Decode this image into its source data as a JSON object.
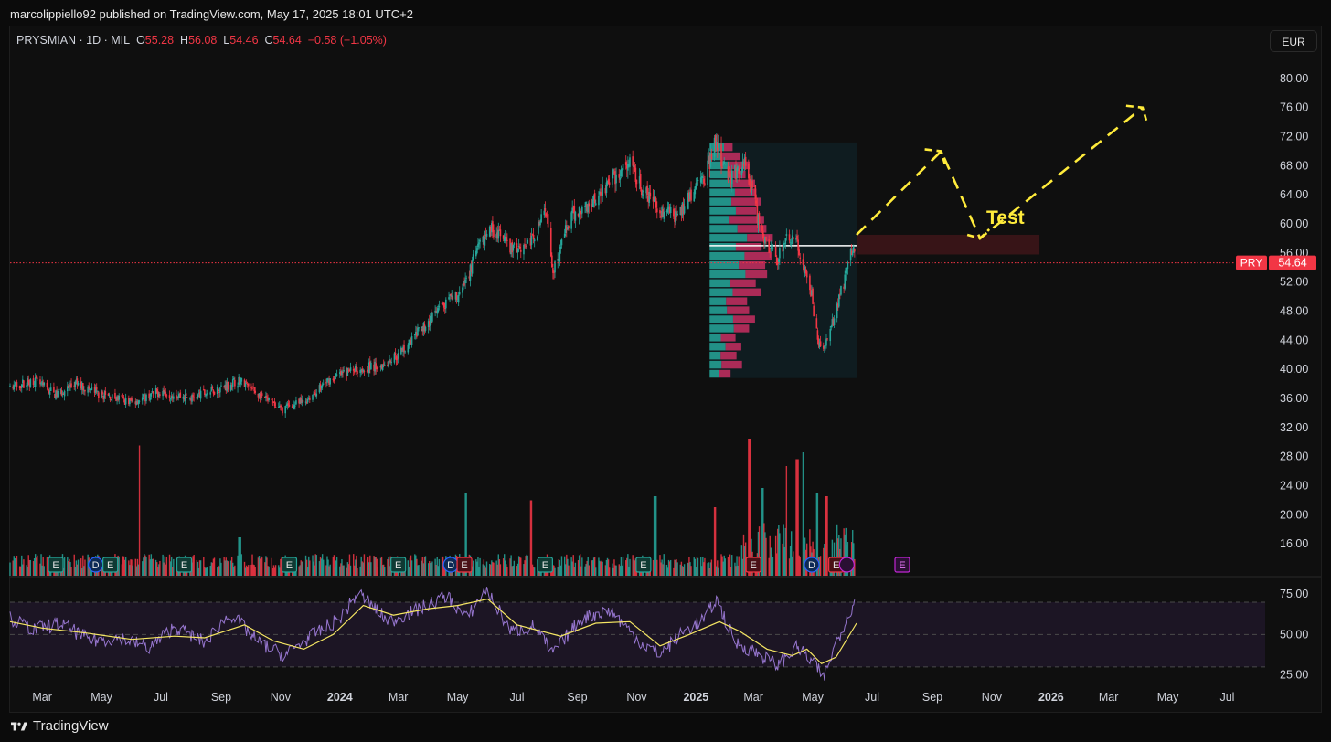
{
  "header": {
    "published_line": "marcolippiello92 published on TradingView.com, May 17, 2025 18:01 UTC+2"
  },
  "legend": {
    "symbol_line": "PRYSMIAN · 1D · MIL",
    "o_label": "O",
    "o_value": "55.28",
    "h_label": "H",
    "h_value": "56.08",
    "l_label": "L",
    "l_value": "54.46",
    "c_label": "C",
    "c_value": "54.64",
    "change": "−0.58 (−1.05%)"
  },
  "currency_button": "EUR",
  "branding": "TradingView",
  "colors": {
    "up": "#26a69a",
    "down": "#f23645",
    "rsi_line": "#9575cd",
    "rsi_ma": "#f5e663",
    "annotation": "#ffeb3b",
    "price_line": "#f23645"
  },
  "chart_data": [
    {
      "type": "candlestick",
      "symbol": "PRYSMIAN",
      "ticker": "PRY",
      "interval": "1D",
      "exchange": "MIL",
      "last_price": "54.64",
      "y_ticks": [
        "80.00",
        "76.00",
        "72.00",
        "68.00",
        "64.00",
        "60.00",
        "56.00",
        "52.00",
        "48.00",
        "44.00",
        "40.00",
        "36.00",
        "32.00",
        "28.00",
        "24.00",
        "20.00",
        "16.00"
      ],
      "ylim": [
        13.5,
        82
      ],
      "x_ticks": [
        "Mar",
        "May",
        "Jul",
        "Sep",
        "Nov",
        "2024",
        "Mar",
        "May",
        "Jul",
        "Sep",
        "Nov",
        "2025",
        "Mar",
        "May",
        "Jul",
        "Sep",
        "Nov",
        "2026",
        "Mar",
        "May",
        "Jul"
      ],
      "x_tick_dates": [
        "2023-03-01",
        "2023-05-01",
        "2023-07-01",
        "2023-09-01",
        "2023-11-01",
        "2024-01-01",
        "2024-03-01",
        "2024-05-01",
        "2024-07-01",
        "2024-09-01",
        "2024-11-01",
        "2025-01-01",
        "2025-03-01",
        "2025-05-01",
        "2025-07-01",
        "2025-09-01",
        "2025-11-01",
        "2026-01-01",
        "2026-03-01",
        "2026-05-01",
        "2026-07-01"
      ],
      "xlim": [
        "2023-01-27",
        "2026-08-09"
      ],
      "price_path": [
        [
          "2023-01-27",
          37.5
        ],
        [
          "2023-02-20",
          38.5
        ],
        [
          "2023-03-15",
          36.5
        ],
        [
          "2023-04-05",
          38.0
        ],
        [
          "2023-05-01",
          36.5
        ],
        [
          "2023-06-01",
          35.5
        ],
        [
          "2023-07-01",
          37.0
        ],
        [
          "2023-08-01",
          36.0
        ],
        [
          "2023-09-01",
          37.5
        ],
        [
          "2023-09-20",
          38.5
        ],
        [
          "2023-10-15",
          36.0
        ],
        [
          "2023-11-01",
          34.5
        ],
        [
          "2023-11-25",
          35.5
        ],
        [
          "2023-12-20",
          38.5
        ],
        [
          "2024-01-15",
          40.0
        ],
        [
          "2024-02-10",
          40.5
        ],
        [
          "2024-03-01",
          42.0
        ],
        [
          "2024-03-25",
          45.5
        ],
        [
          "2024-04-15",
          48.5
        ],
        [
          "2024-05-05",
          50.5
        ],
        [
          "2024-05-20",
          56.0
        ],
        [
          "2024-06-05",
          59.5
        ],
        [
          "2024-06-25",
          56.5
        ],
        [
          "2024-07-15",
          57.5
        ],
        [
          "2024-08-01",
          62.0
        ],
        [
          "2024-08-07",
          53.5
        ],
        [
          "2024-08-25",
          61.0
        ],
        [
          "2024-09-15",
          63.0
        ],
        [
          "2024-10-05",
          66.0
        ],
        [
          "2024-10-25",
          68.0
        ],
        [
          "2024-11-10",
          64.0
        ],
        [
          "2024-11-25",
          62.0
        ],
        [
          "2024-12-15",
          61.0
        ],
        [
          "2024-12-25",
          64.0
        ],
        [
          "2025-01-10",
          66.5
        ],
        [
          "2025-01-20",
          71.0
        ],
        [
          "2025-02-05",
          66.5
        ],
        [
          "2025-02-20",
          68.0
        ],
        [
          "2025-03-01",
          64.0
        ],
        [
          "2025-03-05",
          61.0
        ],
        [
          "2025-03-15",
          57.0
        ],
        [
          "2025-03-25",
          55.0
        ],
        [
          "2025-04-07",
          58.5
        ],
        [
          "2025-04-15",
          57.0
        ],
        [
          "2025-04-22",
          54.0
        ],
        [
          "2025-04-30",
          50.0
        ],
        [
          "2025-05-05",
          45.0
        ],
        [
          "2025-05-09",
          42.5
        ],
        [
          "2025-05-17",
          44.0
        ],
        [
          "2025-05-26",
          49.0
        ],
        [
          "2025-06-02",
          52.0
        ],
        [
          "2025-06-09",
          56.0
        ],
        [
          "2025-06-12",
          57.5
        ],
        [
          "2025-06-15",
          54.64
        ]
      ],
      "volume_ylim": [
        0,
        100
      ],
      "volume_note": "relative bar heights",
      "volume_spikes": [
        [
          "2023-06-10",
          95,
          "down"
        ],
        [
          "2023-09-20",
          28,
          "up"
        ],
        [
          "2024-05-10",
          60,
          "up"
        ],
        [
          "2024-07-15",
          55,
          "down"
        ],
        [
          "2024-11-20",
          58,
          "up"
        ],
        [
          "2025-01-20",
          50,
          "down"
        ],
        [
          "2025-02-25",
          100,
          "down"
        ],
        [
          "2025-03-10",
          64,
          "up"
        ],
        [
          "2025-04-05",
          80,
          "down"
        ],
        [
          "2025-04-15",
          85,
          "down"
        ],
        [
          "2025-04-20",
          90,
          "up"
        ],
        [
          "2025-05-05",
          60,
          "up"
        ],
        [
          "2025-05-15",
          58,
          "down"
        ]
      ],
      "events": [
        {
          "date": "2023-03-15",
          "label": "E",
          "kind": "earnings-past"
        },
        {
          "date": "2023-04-25",
          "label": "D",
          "kind": "dividend"
        },
        {
          "date": "2023-05-10",
          "label": "E",
          "kind": "earnings-past"
        },
        {
          "date": "2023-07-25",
          "label": "E",
          "kind": "earnings-past"
        },
        {
          "date": "2023-11-10",
          "label": "E",
          "kind": "earnings-past"
        },
        {
          "date": "2024-03-01",
          "label": "E",
          "kind": "earnings-past"
        },
        {
          "date": "2024-04-24",
          "label": "D",
          "kind": "dividend"
        },
        {
          "date": "2024-05-08",
          "label": "E",
          "kind": "earnings-negative"
        },
        {
          "date": "2024-07-30",
          "label": "E",
          "kind": "earnings-past"
        },
        {
          "date": "2024-11-08",
          "label": "E",
          "kind": "earnings-past"
        },
        {
          "date": "2025-03-01",
          "label": "E",
          "kind": "earnings-negative"
        },
        {
          "date": "2025-04-30",
          "label": "D",
          "kind": "dividend"
        },
        {
          "date": "2025-05-25",
          "label": "E",
          "kind": "earnings-negative"
        },
        {
          "date": "2025-06-05",
          "label": "",
          "kind": "split"
        },
        {
          "date": "2025-08-01",
          "label": "E",
          "kind": "earnings-future"
        }
      ],
      "volume_profile_range": {
        "from": "2025-01-15",
        "to": "2025-06-15",
        "low": 38.8,
        "high": 71.2,
        "poc": 57.0
      },
      "resistance_zone": {
        "from": "2025-06-15",
        "to": "2025-12-20",
        "low": 55.8,
        "high": 58.5
      },
      "annotations": [
        {
          "text": "Test",
          "date": "2025-11-15",
          "price": 60.0
        },
        {
          "type": "projection",
          "points": [
            [
              "2025-06-15",
              58.5
            ],
            [
              "2025-09-10",
              70.0
            ],
            [
              "2025-10-20",
              58.0
            ],
            [
              "2026-04-05",
              76.0
            ]
          ]
        }
      ],
      "price_label": {
        "ticker": "PRY",
        "value": "54.64"
      }
    },
    {
      "type": "line",
      "name": "RSI",
      "y_ticks": [
        "75.00",
        "50.00",
        "25.00"
      ],
      "ylim": [
        22,
        83
      ],
      "bands": [
        30,
        70
      ],
      "rsi_path": [
        [
          "2023-01-27",
          60
        ],
        [
          "2023-02-20",
          53
        ],
        [
          "2023-03-20",
          57
        ],
        [
          "2023-04-20",
          46
        ],
        [
          "2023-05-20",
          48
        ],
        [
          "2023-06-20",
          42
        ],
        [
          "2023-07-15",
          55
        ],
        [
          "2023-08-15",
          45
        ],
        [
          "2023-09-10",
          63
        ],
        [
          "2023-10-10",
          45
        ],
        [
          "2023-11-05",
          37
        ],
        [
          "2023-11-30",
          48
        ],
        [
          "2024-01-01",
          60
        ],
        [
          "2024-01-20",
          76
        ],
        [
          "2024-02-20",
          58
        ],
        [
          "2024-03-20",
          65
        ],
        [
          "2024-04-20",
          74
        ],
        [
          "2024-05-10",
          60
        ],
        [
          "2024-05-30",
          78
        ],
        [
          "2024-06-25",
          52
        ],
        [
          "2024-07-20",
          55
        ],
        [
          "2024-08-06",
          38
        ],
        [
          "2024-09-05",
          60
        ],
        [
          "2024-10-05",
          65
        ],
        [
          "2024-11-05",
          45
        ],
        [
          "2024-11-25",
          38
        ],
        [
          "2024-12-20",
          52
        ],
        [
          "2025-01-10",
          60
        ],
        [
          "2025-01-22",
          72
        ],
        [
          "2025-02-10",
          45
        ],
        [
          "2025-03-01",
          40
        ],
        [
          "2025-03-25",
          31
        ],
        [
          "2025-04-15",
          42
        ],
        [
          "2025-05-01",
          33
        ],
        [
          "2025-05-12",
          23
        ],
        [
          "2025-05-25",
          45
        ],
        [
          "2025-06-05",
          60
        ],
        [
          "2025-06-12",
          70
        ],
        [
          "2025-06-15",
          64
        ]
      ],
      "ma_path": [
        [
          "2023-01-27",
          58
        ],
        [
          "2023-03-01",
          54
        ],
        [
          "2023-04-15",
          51
        ],
        [
          "2023-06-01",
          47
        ],
        [
          "2023-07-15",
          49
        ],
        [
          "2023-08-15",
          48
        ],
        [
          "2023-09-25",
          56
        ],
        [
          "2023-10-25",
          46
        ],
        [
          "2023-11-25",
          41
        ],
        [
          "2023-12-25",
          50
        ],
        [
          "2024-01-25",
          68
        ],
        [
          "2024-02-25",
          62
        ],
        [
          "2024-04-01",
          66
        ],
        [
          "2024-05-01",
          68
        ],
        [
          "2024-06-01",
          72
        ],
        [
          "2024-07-01",
          56
        ],
        [
          "2024-08-15",
          49
        ],
        [
          "2024-09-20",
          57
        ],
        [
          "2024-10-25",
          58
        ],
        [
          "2024-11-25",
          43
        ],
        [
          "2024-12-25",
          50
        ],
        [
          "2025-01-25",
          58
        ],
        [
          "2025-02-15",
          52
        ],
        [
          "2025-03-15",
          41
        ],
        [
          "2025-04-10",
          37
        ],
        [
          "2025-04-25",
          41
        ],
        [
          "2025-05-10",
          32
        ],
        [
          "2025-05-25",
          36
        ],
        [
          "2025-06-15",
          57
        ]
      ]
    }
  ]
}
